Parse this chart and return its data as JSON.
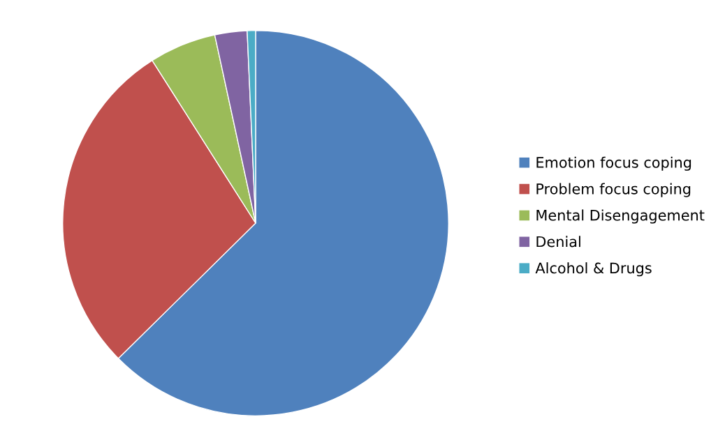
{
  "chart_data": {
    "type": "pie",
    "categories": [
      "Emotion focus coping",
      "Problem focus coping",
      "Mental Disengagement",
      "Denial",
      "Alcohol & Drugs"
    ],
    "values": [
      62.6,
      28.4,
      5.6,
      2.7,
      0.7
    ],
    "colors": [
      "#4f81bd",
      "#c0504d",
      "#9bbb59",
      "#8064a2",
      "#4bacc6"
    ],
    "legend": "right"
  }
}
